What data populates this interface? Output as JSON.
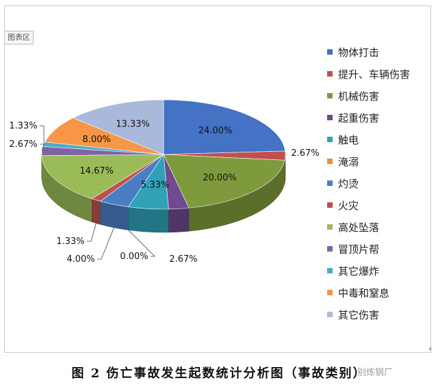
{
  "area_tag": "图表区",
  "caption": "图 2  伤亡事故发生起数统计分析图（事故类别）",
  "watermark": "别炼钢厂",
  "chart_data": {
    "type": "pie",
    "style": "3d",
    "title": "",
    "legend_position": "right",
    "slices": [
      {
        "label": "物体打击",
        "value": 24.0,
        "display": "24.00%",
        "color": "#4472c4"
      },
      {
        "label": "提升、车辆伤害",
        "value": 2.67,
        "display": "2.67%",
        "color": "#c0504d"
      },
      {
        "label": "机械伤害",
        "value": 20.0,
        "display": "20.00%",
        "color": "#7f9a3c"
      },
      {
        "label": "起重伤害",
        "value": 2.67,
        "display": "2.67%",
        "color": "#6f4a8e"
      },
      {
        "label": "触电",
        "value": 5.33,
        "display": "5.33%",
        "color": "#31a1b8"
      },
      {
        "label": "淹溺",
        "value": 0.0,
        "display": "0.00%",
        "color": "#f08c3a"
      },
      {
        "label": "灼烫",
        "value": 4.0,
        "display": "4.00%",
        "color": "#4a7ec4"
      },
      {
        "label": "火灾",
        "value": 1.33,
        "display": "1.33%",
        "color": "#c0504d"
      },
      {
        "label": "高处坠落",
        "value": 14.67,
        "display": "14.67%",
        "color": "#9bbb59"
      },
      {
        "label": "冒顶片帮",
        "value": 2.67,
        "display": "2.67%",
        "color": "#8064a2"
      },
      {
        "label": "其它爆炸",
        "value": 1.33,
        "display": "1.33%",
        "color": "#4bacc6"
      },
      {
        "label": "中毒和窒息",
        "value": 8.0,
        "display": "8.00%",
        "color": "#f79646"
      },
      {
        "label": "其它伤害",
        "value": 13.33,
        "display": "13.33%",
        "color": "#a9b9dc"
      }
    ]
  }
}
